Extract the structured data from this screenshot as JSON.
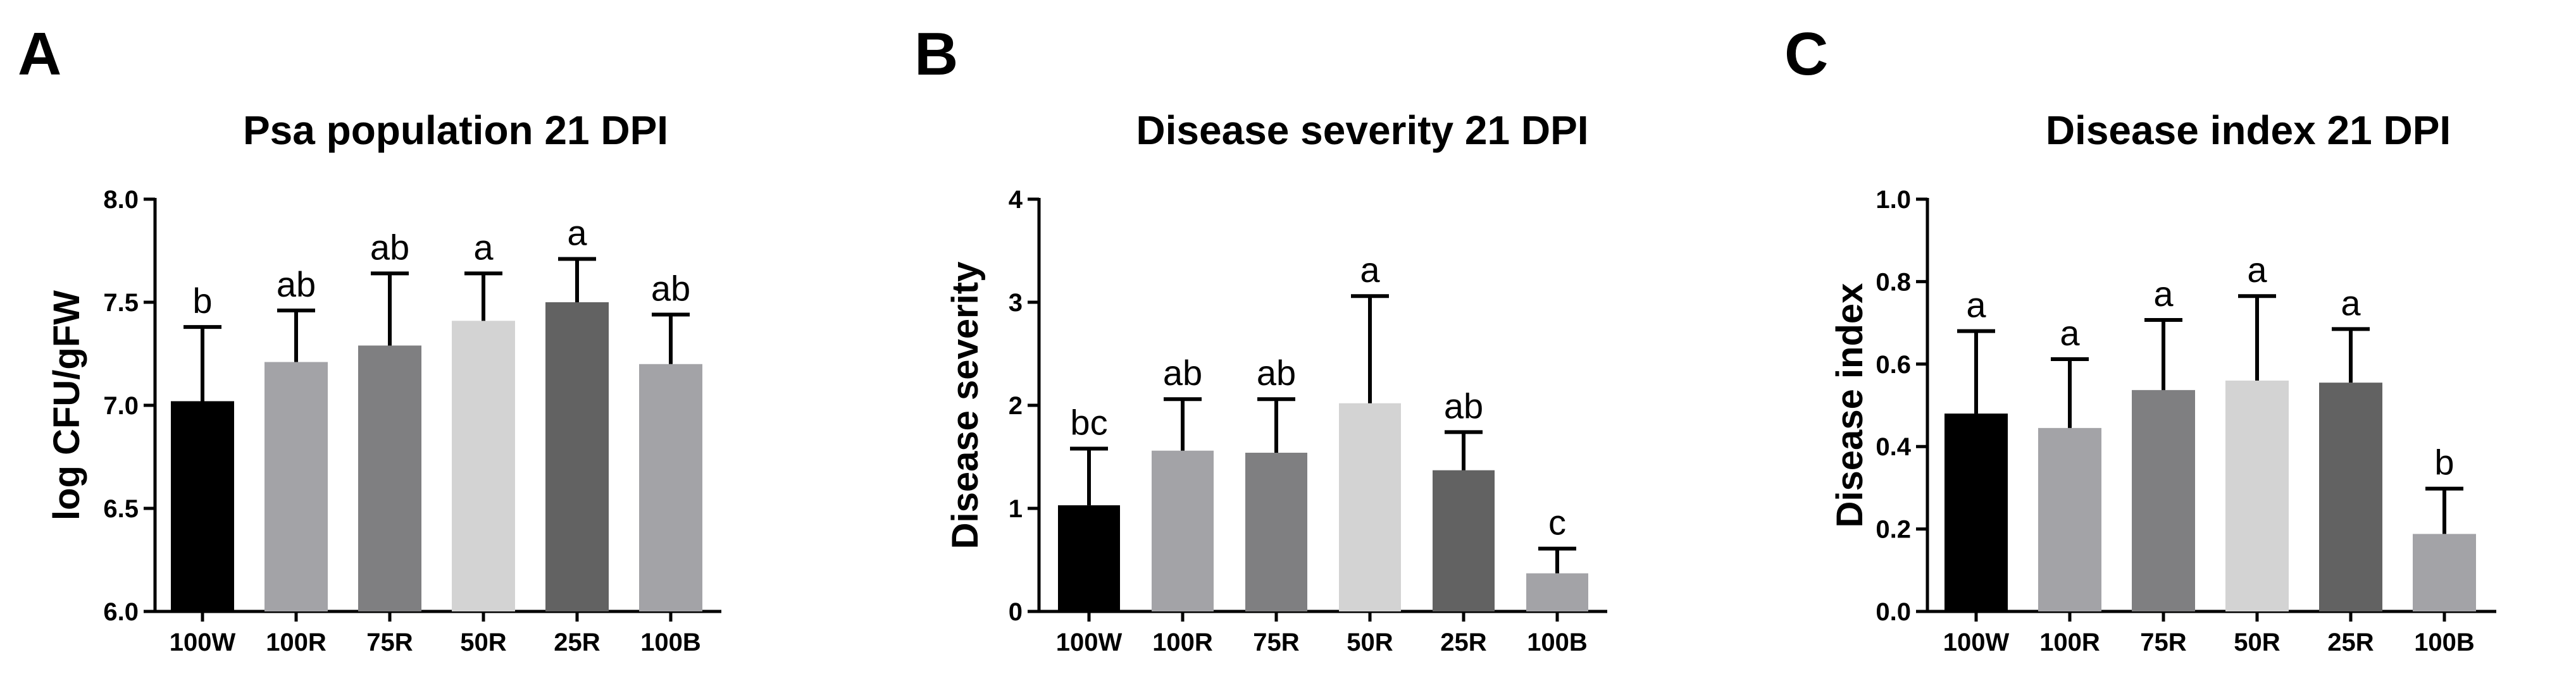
{
  "figure": {
    "panels": [
      "A",
      "B",
      "C"
    ],
    "colors": {
      "100W": "#000000",
      "100R": "#a3a3a7",
      "75R": "#7f7f81",
      "50R": "#d3d3d3",
      "25R": "#626262",
      "100B": "#a3a3a7",
      "axis": "#000000"
    }
  },
  "chart_data": [
    {
      "panel": "A",
      "type": "bar",
      "title": "Psa population 21 DPI",
      "xlabel": "",
      "ylabel": "log CFU/gFW",
      "categories": [
        "100W",
        "100R",
        "75R",
        "50R",
        "25R",
        "100B"
      ],
      "values": [
        7.02,
        7.21,
        7.29,
        7.41,
        7.5,
        7.2
      ],
      "errors": [
        0.36,
        0.25,
        0.35,
        0.23,
        0.21,
        0.24
      ],
      "significance": [
        "b",
        "ab",
        "ab",
        "a",
        "a",
        "ab"
      ],
      "ylim": [
        6.0,
        8.0
      ],
      "yticks": [
        6.0,
        6.5,
        7.0,
        7.5,
        8.0
      ],
      "ytick_labels": [
        "6.0",
        "6.5",
        "7.0",
        "7.5",
        "8.0"
      ],
      "grid": false
    },
    {
      "panel": "B",
      "type": "bar",
      "title": "Disease severity 21 DPI",
      "xlabel": "",
      "ylabel": "Disease severity",
      "categories": [
        "100W",
        "100R",
        "75R",
        "50R",
        "25R",
        "100B"
      ],
      "values": [
        1.03,
        1.56,
        1.54,
        2.02,
        1.37,
        0.37
      ],
      "errors": [
        0.55,
        0.5,
        0.52,
        1.04,
        0.37,
        0.24
      ],
      "significance": [
        "bc",
        "ab",
        "ab",
        "a",
        "ab",
        "c"
      ],
      "ylim": [
        0,
        4
      ],
      "yticks": [
        0,
        1,
        2,
        3,
        4
      ],
      "ytick_labels": [
        "0",
        "1",
        "2",
        "3",
        "4"
      ],
      "grid": false
    },
    {
      "panel": "C",
      "type": "bar",
      "title": "Disease index 21 DPI",
      "xlabel": "",
      "ylabel": "Disease index",
      "categories": [
        "100W",
        "100R",
        "75R",
        "50R",
        "25R",
        "100B"
      ],
      "values": [
        0.48,
        0.445,
        0.537,
        0.56,
        0.555,
        0.188
      ],
      "errors": [
        0.2,
        0.167,
        0.17,
        0.205,
        0.13,
        0.11
      ],
      "significance": [
        "a",
        "a",
        "a",
        "a",
        "a",
        "b"
      ],
      "ylim": [
        0.0,
        1.0
      ],
      "yticks": [
        0.0,
        0.2,
        0.4,
        0.6,
        0.8,
        1.0
      ],
      "ytick_labels": [
        "0.0",
        "0.2",
        "0.4",
        "0.6",
        "0.8",
        "1.0"
      ],
      "grid": false
    }
  ]
}
